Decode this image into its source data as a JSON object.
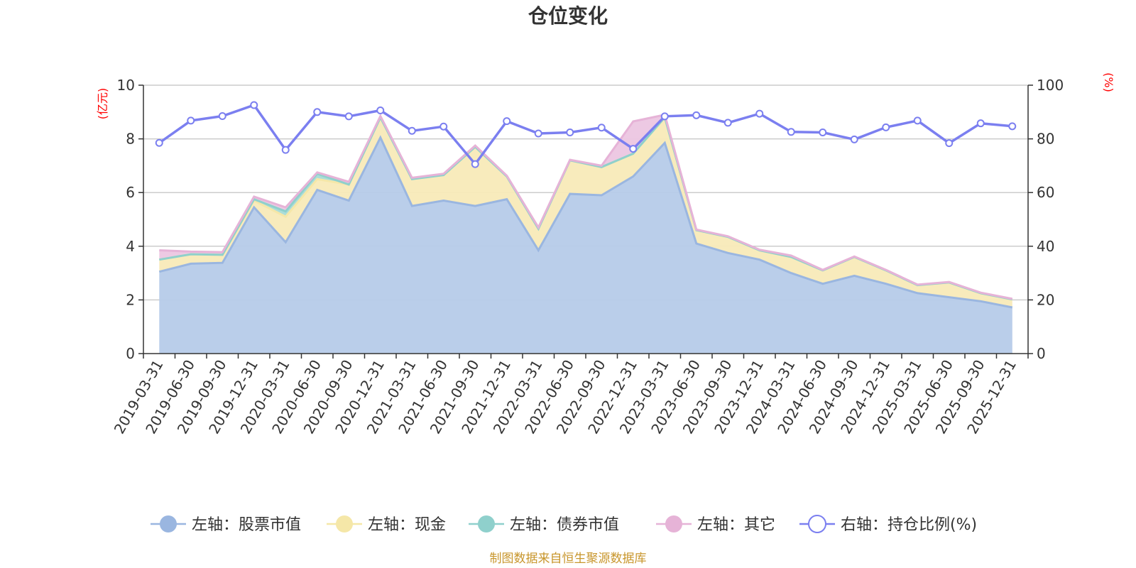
{
  "chart_data": {
    "type": "area",
    "title": "仓位变化",
    "left_axis_unit": "(亿元)",
    "right_axis_unit": "(%)",
    "left_ylim": [
      0,
      10
    ],
    "left_yticks": [
      "0",
      "2",
      "4",
      "6",
      "8",
      "10"
    ],
    "right_ylim": [
      0,
      100
    ],
    "right_yticks": [
      "0",
      "20",
      "40",
      "60",
      "80",
      "100"
    ],
    "categories": [
      "2019-03-31",
      "2019-06-30",
      "2019-09-30",
      "2019-12-31",
      "2020-03-31",
      "2020-06-30",
      "2020-09-30",
      "2020-12-31",
      "2021-03-31",
      "2021-06-30",
      "2021-09-30",
      "2021-12-31",
      "2022-03-31",
      "2022-06-30",
      "2022-09-30",
      "2022-12-31",
      "2023-03-31",
      "2023-06-30",
      "2023-09-30",
      "2023-12-31",
      "2024-03-31",
      "2024-06-30",
      "2024-09-30",
      "2024-12-31",
      "2025-03-31",
      "2025-06-30",
      "2025-09-30",
      "2025-12-31"
    ],
    "series": [
      {
        "name": "左轴：股票市值",
        "axis": "left",
        "color": "#9ab6e0",
        "fill": "#b6cbe9",
        "values": [
          3.05,
          3.35,
          3.38,
          5.45,
          4.15,
          6.1,
          5.7,
          8.05,
          5.5,
          5.7,
          5.5,
          5.75,
          3.85,
          5.95,
          5.9,
          6.6,
          7.85,
          4.1,
          3.75,
          3.5,
          3.0,
          2.6,
          2.9,
          2.6,
          2.25,
          2.1,
          1.95,
          1.72
        ]
      },
      {
        "name": "左轴：现金",
        "axis": "left",
        "color": "#f5e7a8",
        "fill": "#f8eab8",
        "values": [
          0.45,
          0.35,
          0.3,
          0.25,
          0.95,
          0.4,
          0.6,
          0.75,
          1.0,
          0.95,
          2.2,
          0.85,
          0.8,
          1.25,
          1.05,
          0.85,
          0.95,
          0.5,
          0.6,
          0.35,
          0.6,
          0.5,
          0.7,
          0.5,
          0.3,
          0.55,
          0.3,
          0.3
        ]
      },
      {
        "name": "左轴：债券市值",
        "axis": "left",
        "color": "#8fd0cc",
        "fill": "#a6dbd7",
        "values": [
          0,
          0,
          0,
          0.05,
          0.2,
          0.2,
          0,
          0,
          0,
          0,
          0,
          0,
          0,
          0,
          0,
          0,
          0,
          0,
          0,
          0,
          0,
          0,
          0,
          0,
          0,
          0,
          0,
          0
        ]
      },
      {
        "name": "左轴：其它",
        "axis": "left",
        "color": "#e6b3d7",
        "fill": "#ecc6e2",
        "values": [
          0.35,
          0.1,
          0.1,
          0.1,
          0.15,
          0.05,
          0.1,
          0.05,
          0.05,
          0.05,
          0.05,
          0.03,
          0.05,
          0.02,
          0.05,
          1.2,
          0.1,
          0.02,
          0.02,
          0.02,
          0.05,
          0.02,
          0.02,
          0.02,
          0.02,
          0.02,
          0.02,
          0.02
        ]
      },
      {
        "name": "右轴：持仓比例(%)",
        "axis": "right",
        "color": "#7b7ff0",
        "values": [
          78.5,
          86.8,
          88.5,
          92.6,
          75.9,
          90.0,
          88.4,
          90.6,
          83.0,
          84.6,
          70.6,
          86.6,
          82.0,
          82.4,
          84.2,
          76.3,
          88.4,
          88.8,
          86.0,
          89.4,
          82.6,
          82.4,
          79.8,
          84.3,
          86.8,
          78.4,
          85.8,
          84.7
        ]
      }
    ],
    "source": "制图数据来自恒生聚源数据库"
  }
}
